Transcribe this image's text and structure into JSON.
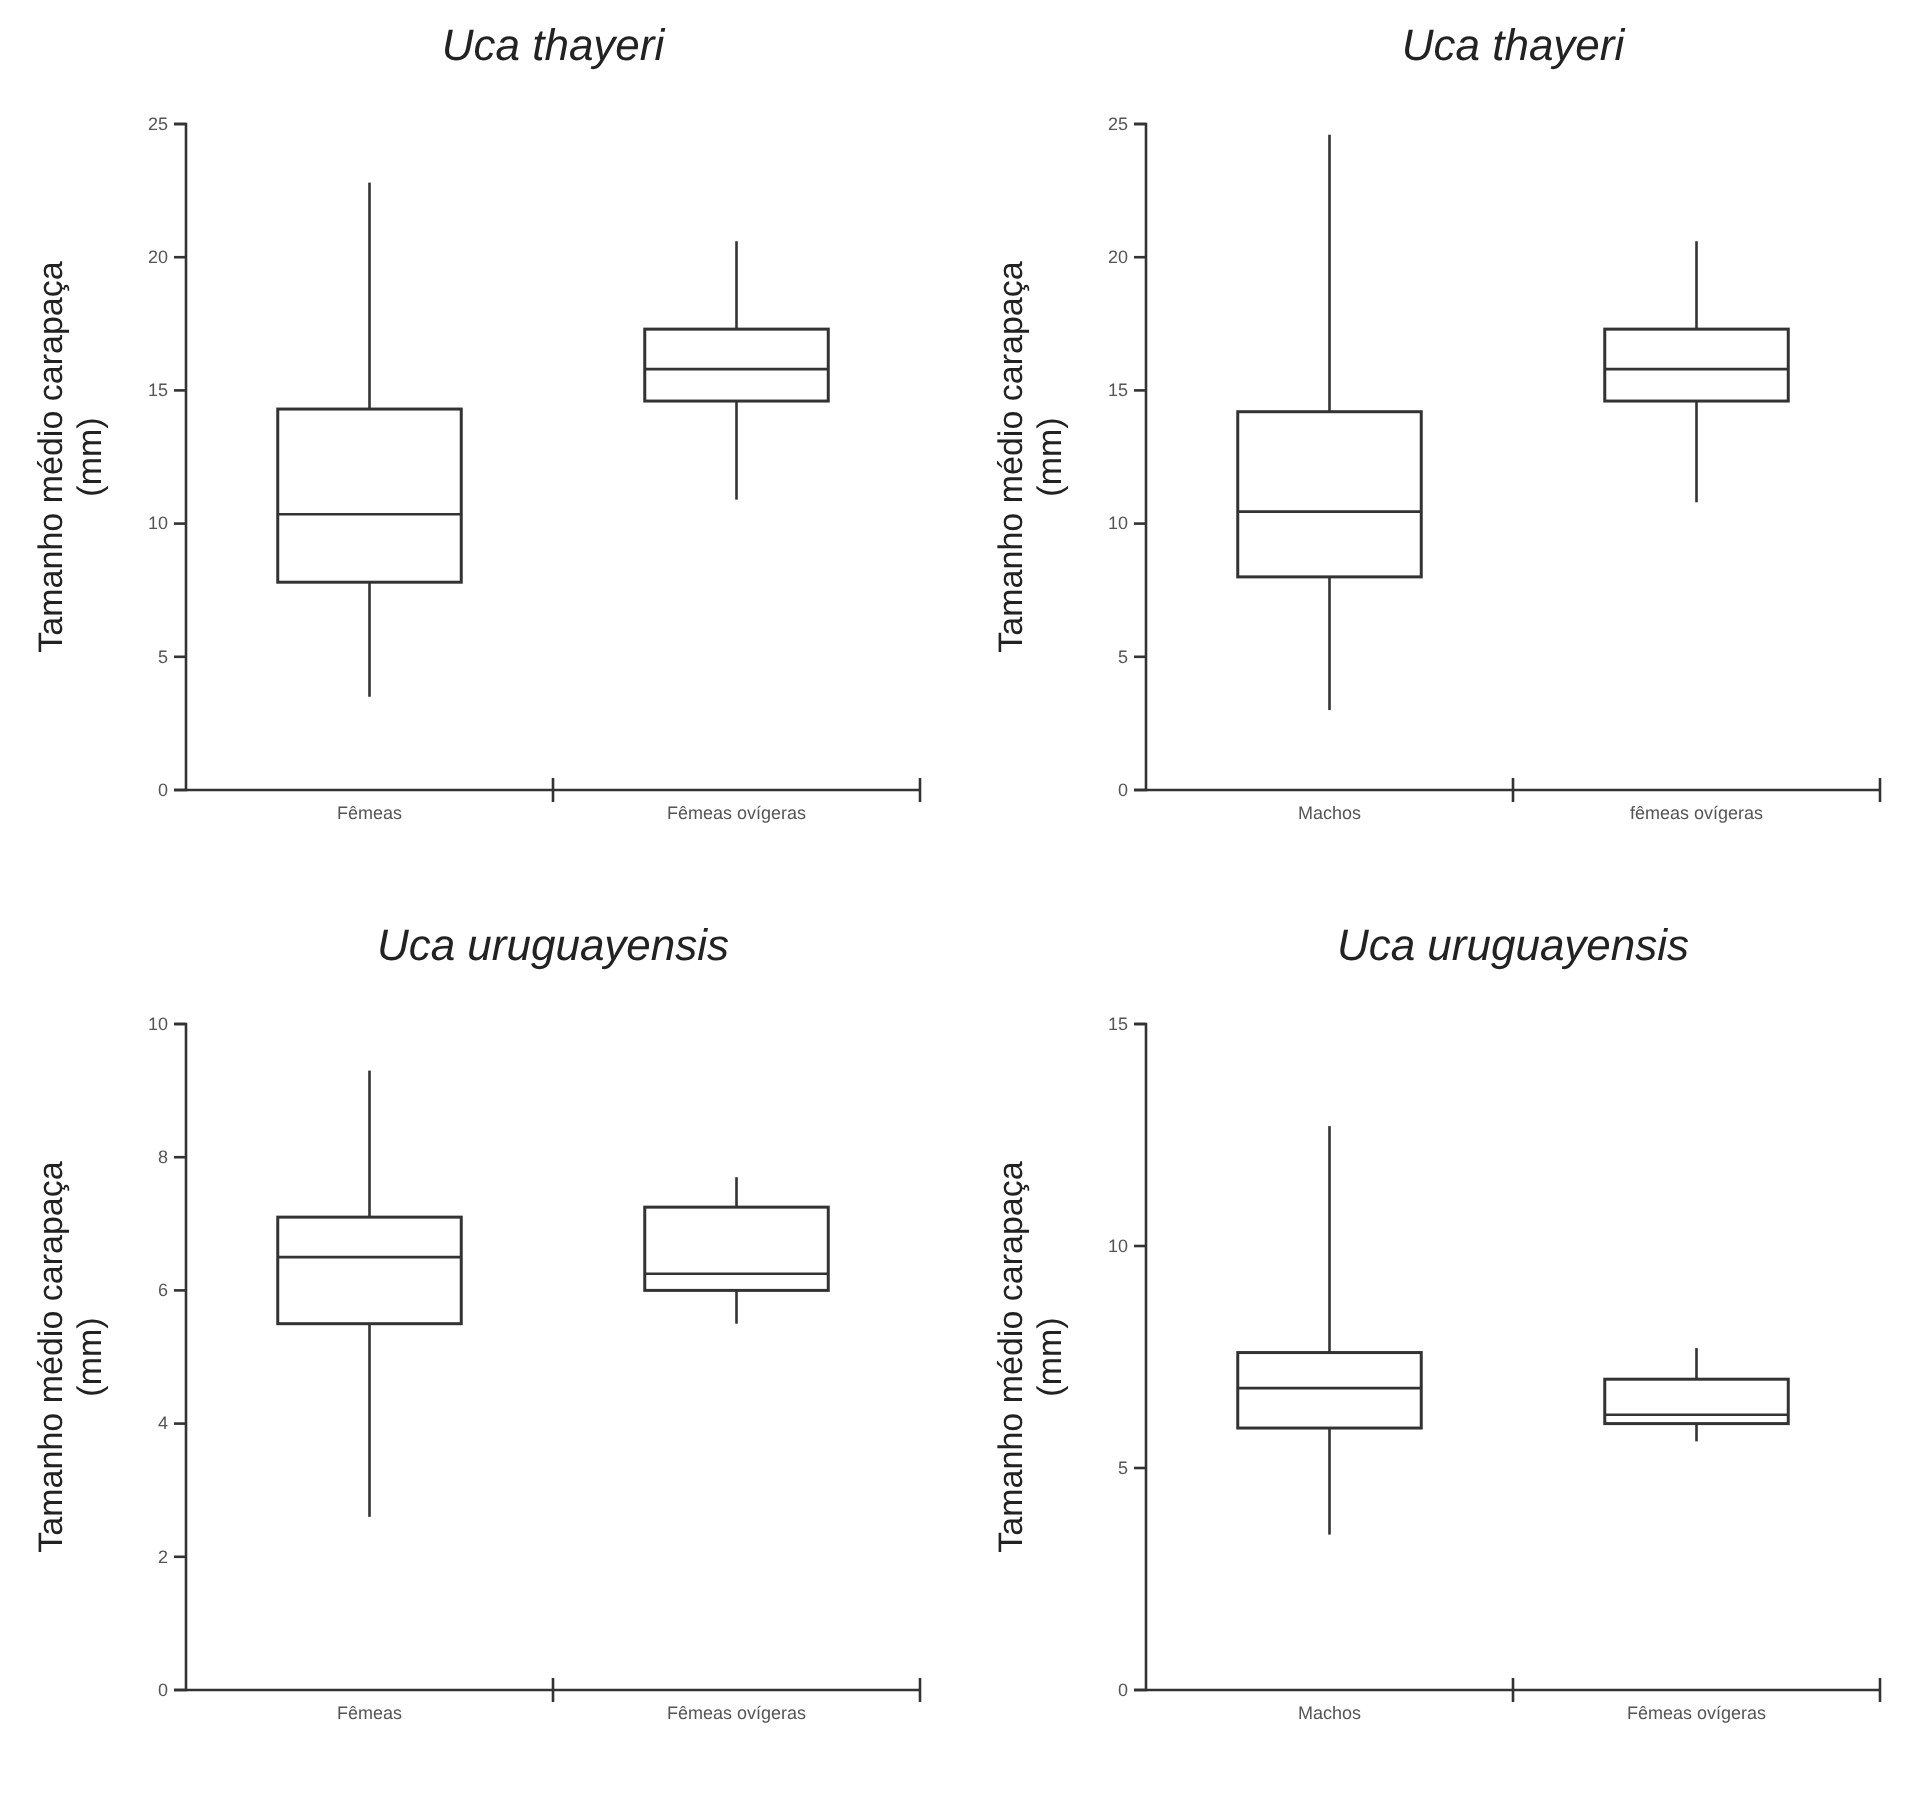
{
  "chart_data": [
    {
      "type": "box",
      "title": "Uca thayeri",
      "ylabel": "Tamanho médio carapaça (mm)",
      "categories": [
        "Fêmeas",
        "Fêmeas ovígeras"
      ],
      "ylim": [
        0,
        25
      ],
      "yticks": [
        0,
        5,
        10,
        15,
        20,
        25
      ],
      "boxes": [
        {
          "low": 3.5,
          "q1": 7.8,
          "median": 10.35,
          "q3": 14.3,
          "high": 22.8
        },
        {
          "low": 10.9,
          "q1": 14.6,
          "median": 15.8,
          "q3": 17.3,
          "high": 20.6
        }
      ]
    },
    {
      "type": "box",
      "title": "Uca thayeri",
      "ylabel": "Tamanho médio carapaça (mm)",
      "categories": [
        "Machos",
        "fêmeas ovígeras"
      ],
      "ylim": [
        0,
        25
      ],
      "yticks": [
        0,
        5,
        10,
        15,
        20,
        25
      ],
      "boxes": [
        {
          "low": 3.0,
          "q1": 8.0,
          "median": 10.45,
          "q3": 14.2,
          "high": 24.6
        },
        {
          "low": 10.8,
          "q1": 14.6,
          "median": 15.8,
          "q3": 17.3,
          "high": 20.6
        }
      ]
    },
    {
      "type": "box",
      "title": "Uca uruguayensis",
      "ylabel": "Tamanho médio carapaça (mm)",
      "categories": [
        "Fêmeas",
        "Fêmeas ovígeras"
      ],
      "ylim": [
        0,
        10
      ],
      "yticks": [
        0,
        2,
        4,
        6,
        8,
        10
      ],
      "boxes": [
        {
          "low": 2.6,
          "q1": 5.5,
          "median": 6.5,
          "q3": 7.1,
          "high": 9.3
        },
        {
          "low": 5.5,
          "q1": 6.0,
          "median": 6.25,
          "q3": 7.25,
          "high": 7.7
        }
      ]
    },
    {
      "type": "box",
      "title": "Uca uruguayensis",
      "ylabel": "Tamanho médio carapaça (mm)",
      "categories": [
        "Machos",
        "Fêmeas ovígeras"
      ],
      "ylim": [
        0,
        15
      ],
      "yticks": [
        0,
        5,
        10,
        15
      ],
      "boxes": [
        {
          "low": 3.5,
          "q1": 5.9,
          "median": 6.8,
          "q3": 7.6,
          "high": 12.7
        },
        {
          "low": 5.6,
          "q1": 6.0,
          "median": 6.2,
          "q3": 7.0,
          "high": 7.7
        }
      ]
    }
  ]
}
